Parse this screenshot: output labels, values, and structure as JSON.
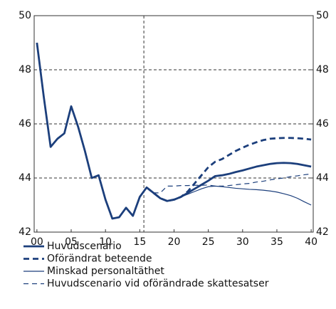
{
  "chart_data": {
    "type": "line",
    "x": [
      0,
      1,
      2,
      3,
      4,
      5,
      6,
      7,
      8,
      9,
      10,
      11,
      12,
      13,
      14,
      15,
      16,
      17,
      18,
      19,
      20,
      21,
      22,
      23,
      24,
      25,
      26,
      27,
      28,
      29,
      30,
      31,
      32,
      33,
      34,
      35,
      36,
      37,
      38,
      39,
      40
    ],
    "xlim": [
      -0.4,
      40.3
    ],
    "xticks": [
      {
        "value": 0,
        "label": "00"
      },
      {
        "value": 5,
        "label": "05"
      },
      10,
      15,
      20,
      25,
      30,
      35,
      40
    ],
    "ylim": [
      42,
      50
    ],
    "yticks": [
      42,
      44,
      46,
      48,
      50
    ],
    "grid": true,
    "forecast_start": 15.6,
    "series": [
      {
        "name": "Huvudscenario",
        "color": "#1c3f7c",
        "style": "solid",
        "weight": "thick",
        "values": [
          49.0,
          47.0,
          45.15,
          45.45,
          45.65,
          46.65,
          45.9,
          45.0,
          44.0,
          44.1,
          43.2,
          42.5,
          42.55,
          42.9,
          42.6,
          43.3,
          43.65,
          43.45,
          43.25,
          43.15,
          43.2,
          43.3,
          43.45,
          43.6,
          43.75,
          43.9,
          44.07,
          44.1,
          44.15,
          44.22,
          44.28,
          44.35,
          44.42,
          44.47,
          44.52,
          44.55,
          44.56,
          44.55,
          44.52,
          44.47,
          44.42
        ]
      },
      {
        "name": "Oförändrat beteende",
        "color": "#1c3f7c",
        "style": "dashed",
        "weight": "thick",
        "values": [
          null,
          null,
          null,
          null,
          null,
          null,
          null,
          null,
          null,
          null,
          null,
          null,
          null,
          null,
          null,
          null,
          43.65,
          43.45,
          43.25,
          43.15,
          43.2,
          43.3,
          43.5,
          43.8,
          44.1,
          44.4,
          44.6,
          44.7,
          44.85,
          45.0,
          45.12,
          45.23,
          45.32,
          45.4,
          45.45,
          45.47,
          45.48,
          45.48,
          45.47,
          45.45,
          45.42
        ]
      },
      {
        "name": "Minskad personaltäthet",
        "color": "#1c3f7c",
        "style": "solid",
        "weight": "thin",
        "values": [
          null,
          null,
          null,
          null,
          null,
          null,
          null,
          null,
          null,
          null,
          null,
          null,
          null,
          null,
          null,
          null,
          43.65,
          43.45,
          43.25,
          43.15,
          43.2,
          43.3,
          43.4,
          43.5,
          43.6,
          43.68,
          43.7,
          43.68,
          43.65,
          43.62,
          43.6,
          43.58,
          43.57,
          43.55,
          43.52,
          43.48,
          43.42,
          43.35,
          43.25,
          43.12,
          43.0
        ]
      },
      {
        "name": "Huvudscenario vid oförändrade skattesatser",
        "color": "#1c3f7c",
        "style": "dashed",
        "weight": "thin",
        "values": [
          null,
          null,
          null,
          null,
          null,
          null,
          null,
          null,
          null,
          null,
          null,
          null,
          null,
          null,
          null,
          null,
          null,
          43.45,
          43.45,
          43.7,
          43.7,
          43.72,
          43.72,
          43.73,
          43.73,
          43.74,
          43.7,
          43.7,
          43.72,
          43.75,
          43.78,
          43.8,
          43.85,
          43.88,
          43.93,
          43.97,
          44.0,
          44.05,
          44.08,
          44.12,
          44.15
        ]
      }
    ]
  }
}
